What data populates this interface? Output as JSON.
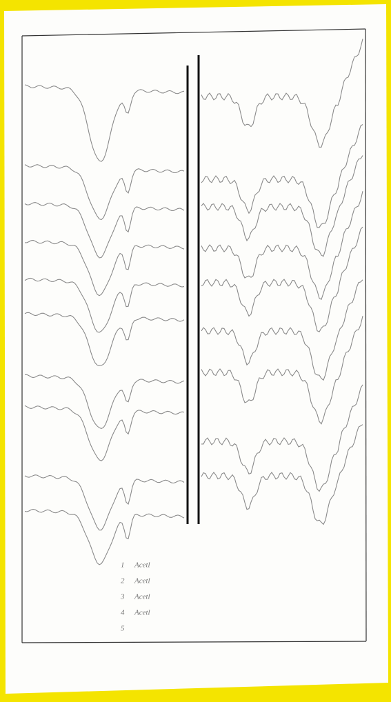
{
  "legend": {
    "items": [
      {
        "number": "1",
        "text": "Acetl"
      },
      {
        "number": "2",
        "text": "Acetl"
      },
      {
        "number": "3",
        "text": "Acetl"
      },
      {
        "number": "4",
        "text": "Acetl"
      },
      {
        "number": "5"
      }
    ]
  }
}
